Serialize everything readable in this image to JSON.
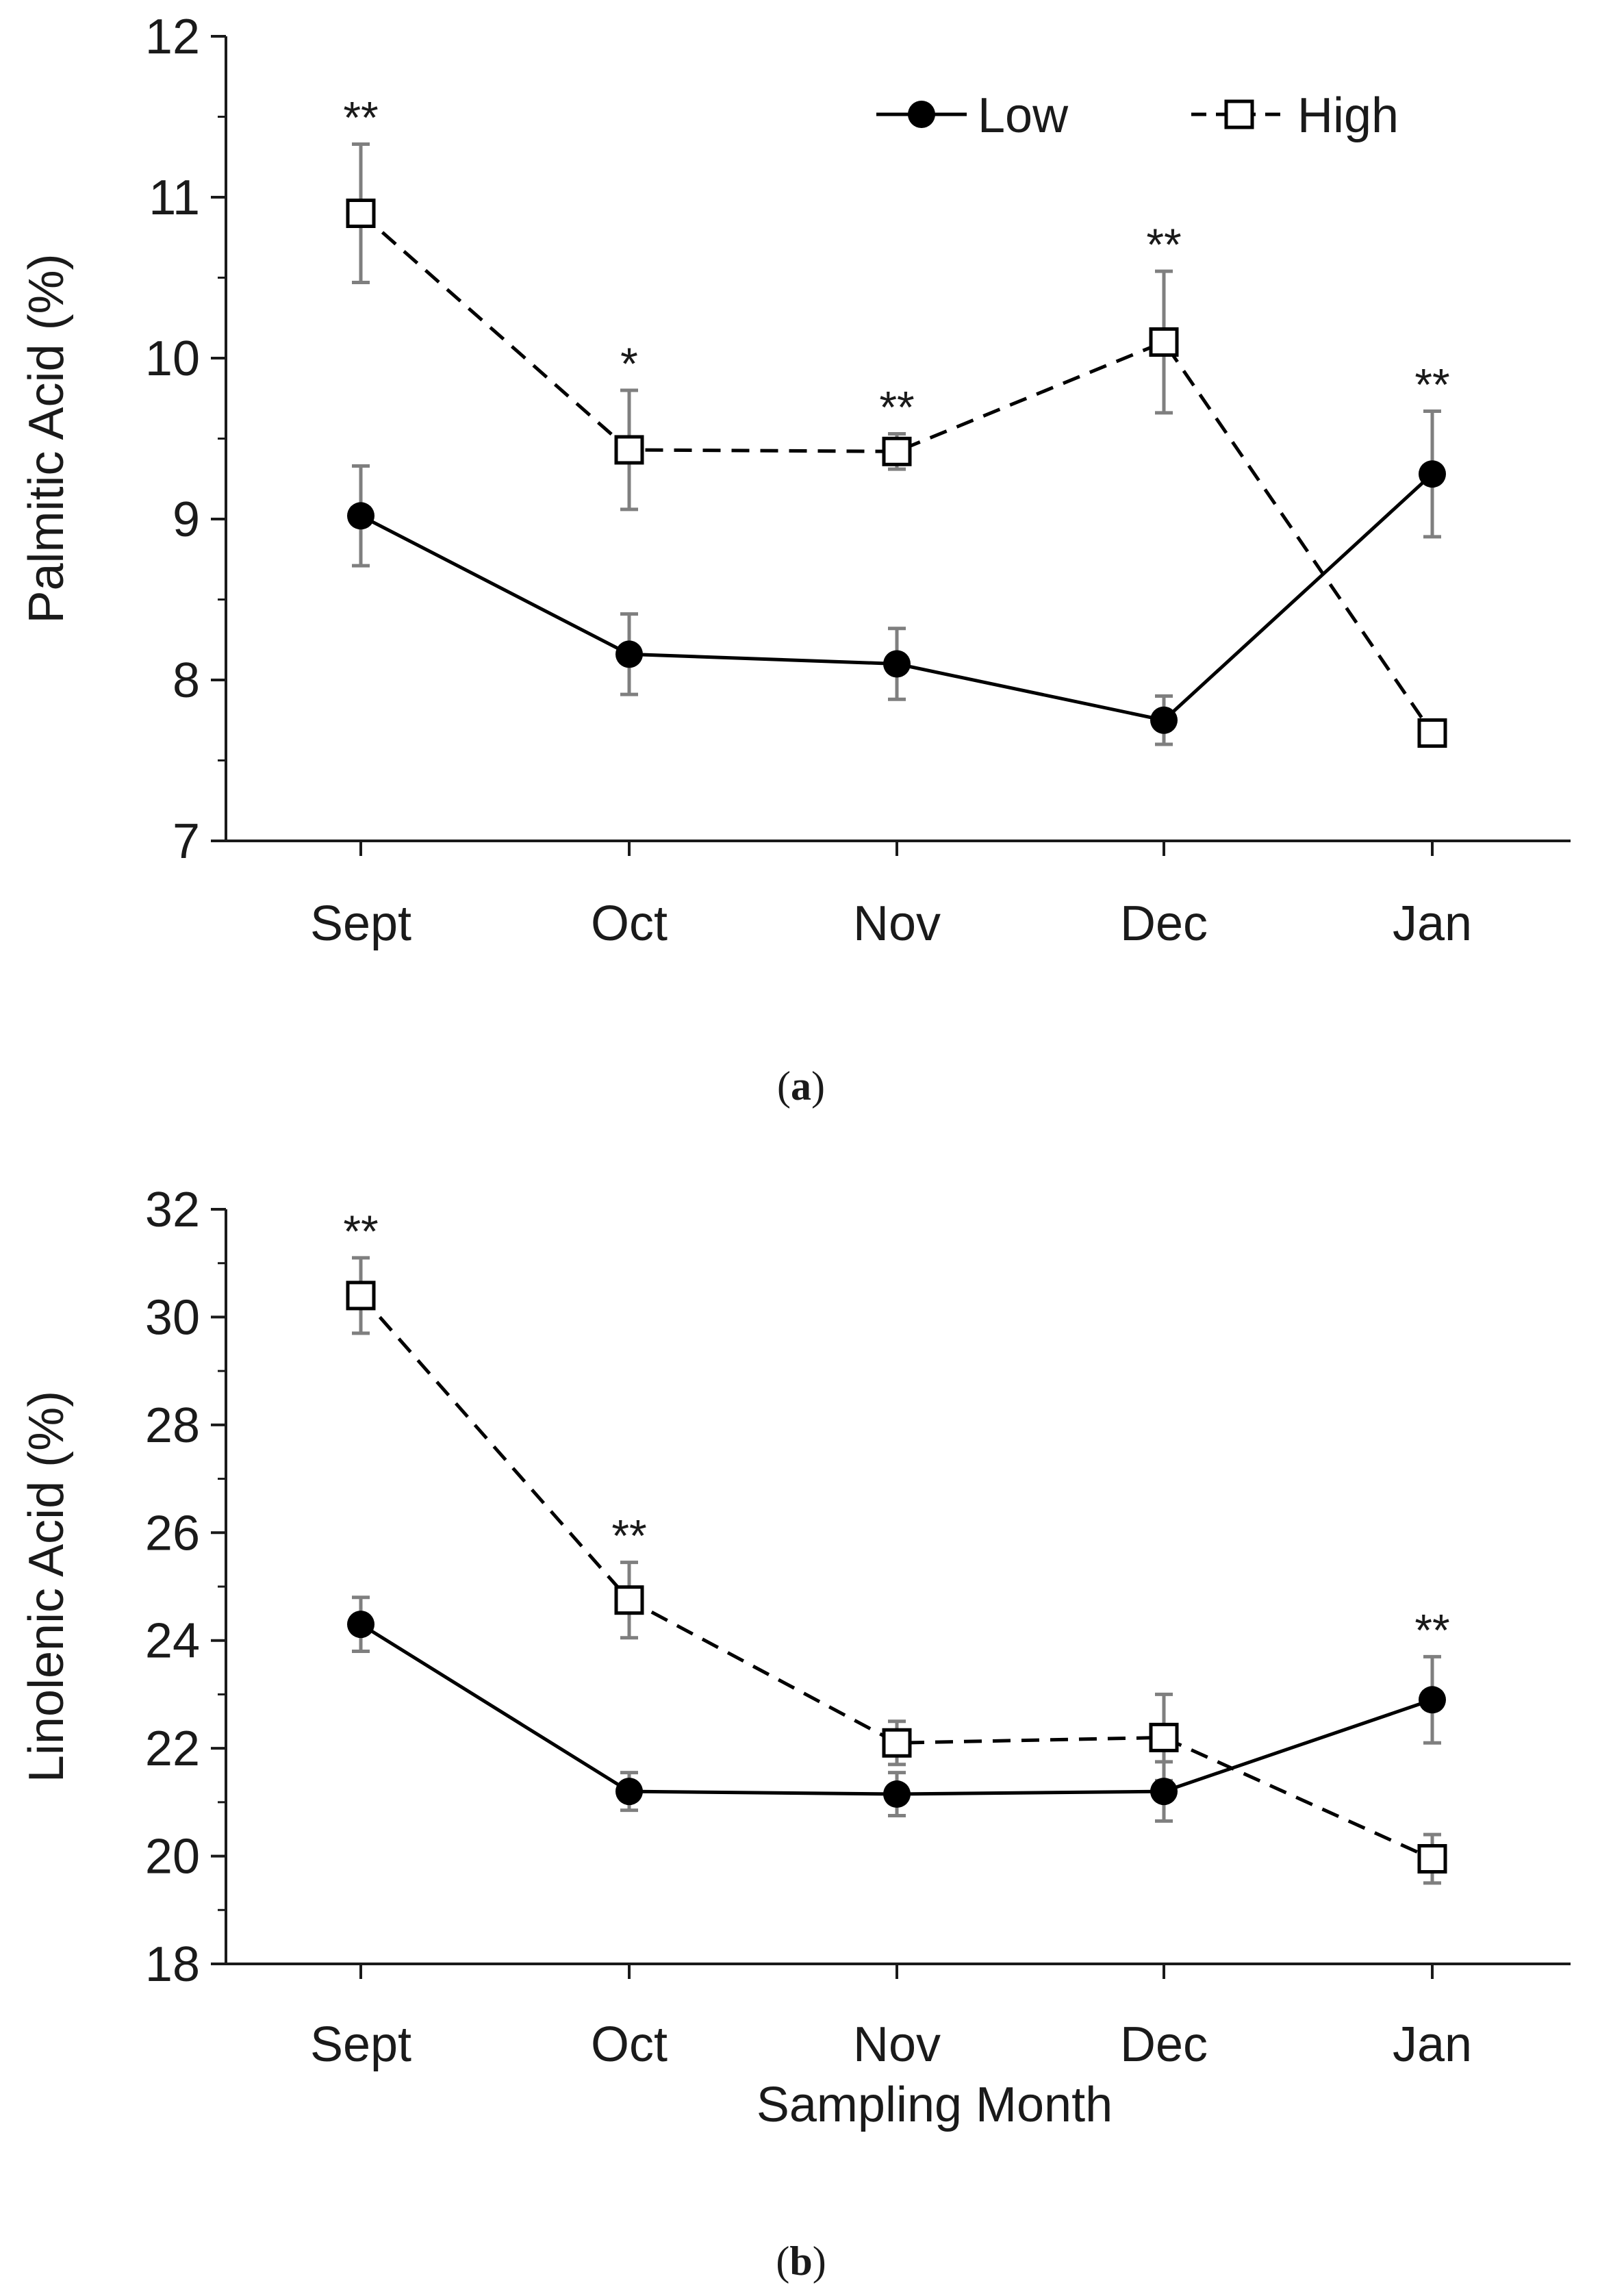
{
  "chart_data": [
    {
      "type": "line",
      "panel": "a",
      "caption_prefix": "(",
      "caption_letter": "a",
      "caption_suffix": ")",
      "categories": [
        "Sept",
        "Oct",
        "Nov",
        "Dec",
        "Jan"
      ],
      "ylabel": "Palmitic Acid (%)",
      "xlabel": "",
      "ylim": [
        7,
        12
      ],
      "yticks": [
        7,
        8,
        9,
        10,
        11,
        12
      ],
      "yminor_step": 0.5,
      "legend": {
        "placement": "top-right",
        "entries": [
          "Low",
          "High"
        ]
      },
      "series": [
        {
          "name": "Low",
          "style": "solid",
          "marker": "filled-circle",
          "values": [
            9.02,
            8.16,
            8.1,
            7.75,
            9.28
          ],
          "errors": [
            0.31,
            0.25,
            0.22,
            0.15,
            0.39
          ]
        },
        {
          "name": "High",
          "style": "dashed",
          "marker": "open-square",
          "values": [
            10.9,
            9.43,
            9.42,
            10.1,
            7.67
          ],
          "errors": [
            0.43,
            0.37,
            0.11,
            0.44,
            0.08
          ]
        }
      ],
      "annotations": [
        {
          "category": "Sept",
          "text": "**"
        },
        {
          "category": "Oct",
          "text": "*"
        },
        {
          "category": "Nov",
          "text": "**"
        },
        {
          "category": "Dec",
          "text": "**"
        },
        {
          "category": "Jan",
          "text": "**"
        }
      ]
    },
    {
      "type": "line",
      "panel": "b",
      "caption_prefix": "(",
      "caption_letter": "b",
      "caption_suffix": ")",
      "categories": [
        "Sept",
        "Oct",
        "Nov",
        "Dec",
        "Jan"
      ],
      "ylabel": "Linolenic Acid (%)",
      "xlabel": "Sampling Month",
      "ylim": [
        18,
        32
      ],
      "yticks": [
        18,
        20,
        22,
        24,
        26,
        28,
        30,
        32
      ],
      "yminor_step": 1,
      "series": [
        {
          "name": "Low",
          "style": "solid",
          "marker": "filled-circle",
          "values": [
            24.3,
            21.2,
            21.15,
            21.2,
            22.9
          ],
          "errors": [
            0.5,
            0.35,
            0.4,
            0.55,
            0.8
          ]
        },
        {
          "name": "High",
          "style": "dashed",
          "marker": "open-square",
          "values": [
            30.4,
            24.75,
            22.1,
            22.2,
            19.95
          ],
          "errors": [
            0.7,
            0.7,
            0.4,
            0.8,
            0.45
          ]
        }
      ],
      "annotations": [
        {
          "category": "Sept",
          "text": "**"
        },
        {
          "category": "Oct",
          "text": "**"
        },
        {
          "category": "Jan",
          "text": "**"
        }
      ]
    }
  ],
  "colors": {
    "axis": "#1a1a1a",
    "line": "#000000",
    "errorbar": "#7f7f7f",
    "open_marker_fill": "#ffffff"
  }
}
